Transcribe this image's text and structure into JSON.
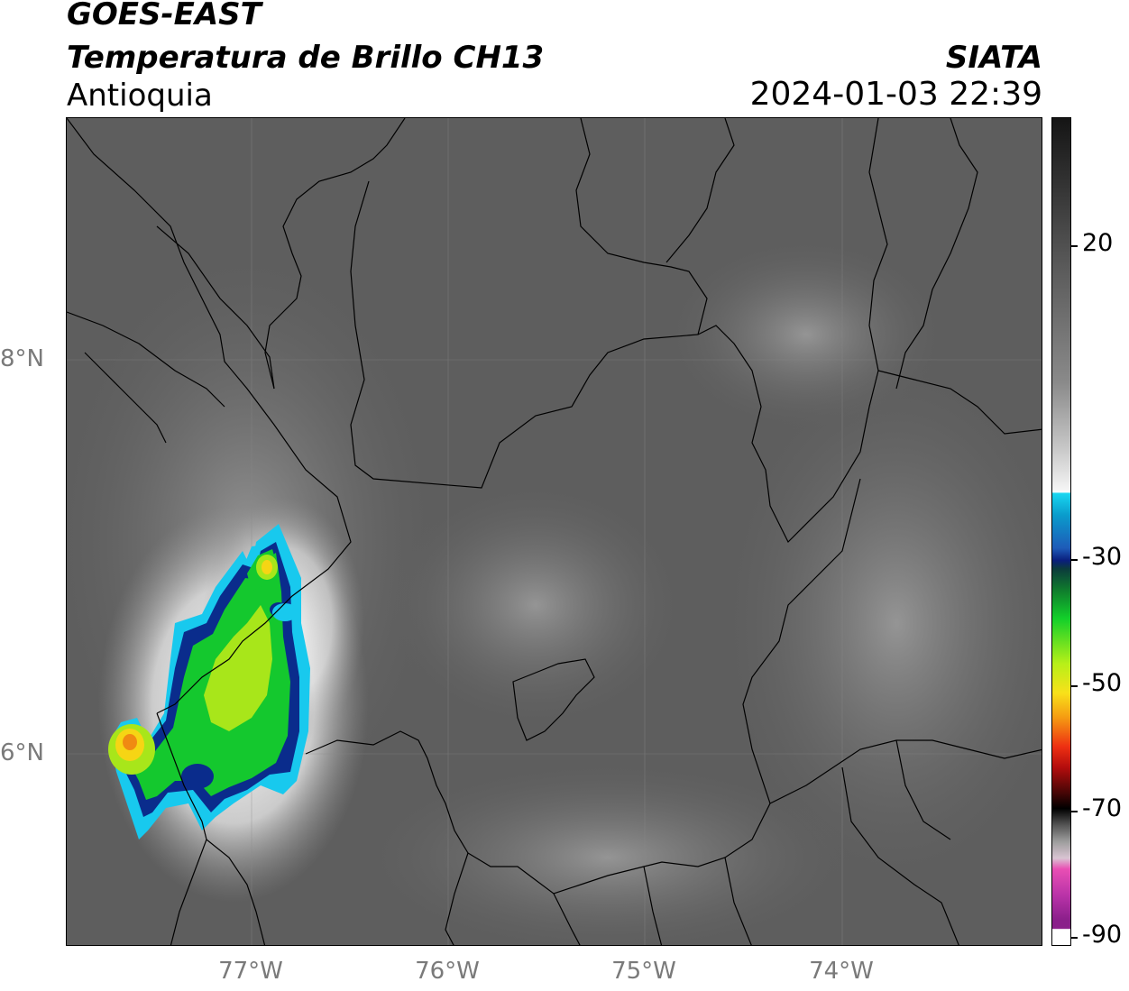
{
  "header": {
    "satellite": "GOES-EAST",
    "product": "Temperatura de Brillo CH13",
    "region": "Antioquia",
    "agency": "SIATA",
    "datetime": "2024-01-03 22:39"
  },
  "axes": {
    "lat_labels": [
      "8°N",
      "6°N"
    ],
    "lon_labels": [
      "77°W",
      "76°W",
      "75°W",
      "74°W"
    ]
  },
  "colorbar": {
    "tick_labels": [
      "20",
      "-30",
      "-50",
      "-70",
      "-90"
    ],
    "colors": {
      "warm": "#151515",
      "neutral": "#f5f5f5",
      "cyan": "#19d6f0",
      "blue": "#0a1e7c",
      "green": "#12cf2a",
      "yellow": "#f8e11a",
      "red": "#ee3012",
      "black": "#000000",
      "magenta": "#b933a8"
    }
  },
  "map": {
    "background_color": "#5d5d5d",
    "gridline_color": "#888888",
    "border_color": "#000000"
  }
}
